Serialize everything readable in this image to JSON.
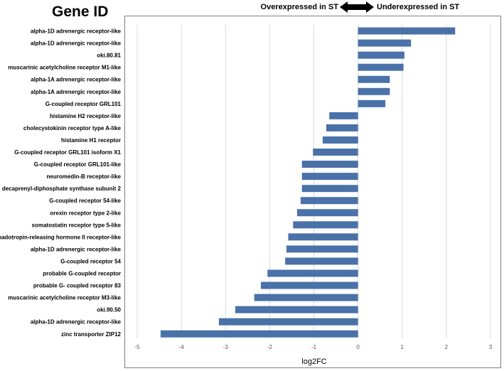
{
  "header": {
    "gene_id": "Gene ID",
    "left_label": "Overexpressed in ST",
    "right_label": "Underexpressed in ST"
  },
  "chart_data": {
    "type": "bar",
    "orientation": "horizontal",
    "xlabel": "log2FC",
    "xlim": [
      -5,
      3
    ],
    "xticks": [
      -5,
      -4,
      -3,
      -2,
      -1,
      0,
      1,
      2,
      3
    ],
    "grid": true,
    "bar_color": "#4a72a8",
    "categories": [
      "alpha-1D adrenergic receptor-like",
      "alpha-1D adrenergic receptor-like",
      "oki.80.81",
      "muscarinic acetylcholine receptor M1-like",
      "alpha-1A adrenergic receptor-like",
      "alpha-1A adrenergic receptor-like",
      "G-coupled receptor GRL101",
      "histamine H2 receptor-like",
      "cholecystokinin receptor type A-like",
      "histamine H1 receptor",
      "G-coupled receptor GRL101 isoform X1",
      "G-coupled receptor GRL101-like",
      "neuromedin-B receptor-like",
      "decaprenyl-diphosphate synthase subunit 2",
      "G-coupled receptor 54-like",
      "orexin receptor type 2-like",
      "somatostatin receptor type 5-like",
      "gonadotropin-releasing hormone II receptor-like",
      "alpha-1D adrenergic receptor-like",
      "G-coupled receptor 54",
      "probable G-coupled receptor",
      "probable G- coupled receptor 83",
      "muscarinic acetylcholine receptor M3-like",
      "oki.90.50",
      "alpha-1D adrenergic receptor-like",
      "zinc transporter ZIP12"
    ],
    "values": [
      2.2,
      1.2,
      1.05,
      1.03,
      0.72,
      0.72,
      0.62,
      -0.65,
      -0.72,
      -0.8,
      -1.02,
      -1.27,
      -1.27,
      -1.27,
      -1.3,
      -1.38,
      -1.47,
      -1.58,
      -1.62,
      -1.65,
      -2.05,
      -2.2,
      -2.35,
      -2.78,
      -3.15,
      -4.47
    ]
  }
}
